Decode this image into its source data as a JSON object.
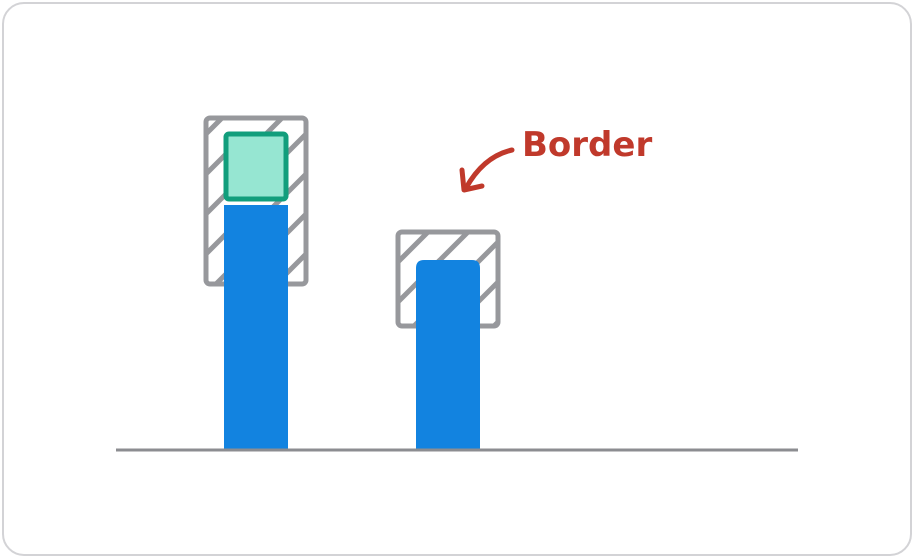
{
  "annotation": {
    "label": "Border"
  },
  "colors": {
    "bar": "#1283e0",
    "hatch_stroke": "#97989c",
    "highlight_fill": "#96e6d2",
    "highlight_stroke": "#119e7c",
    "annotation": "#c0392b",
    "axis": "#8c8d91",
    "frame": "#d3d3d6"
  },
  "icons": {
    "arrow": "curved-arrow-icon"
  }
}
